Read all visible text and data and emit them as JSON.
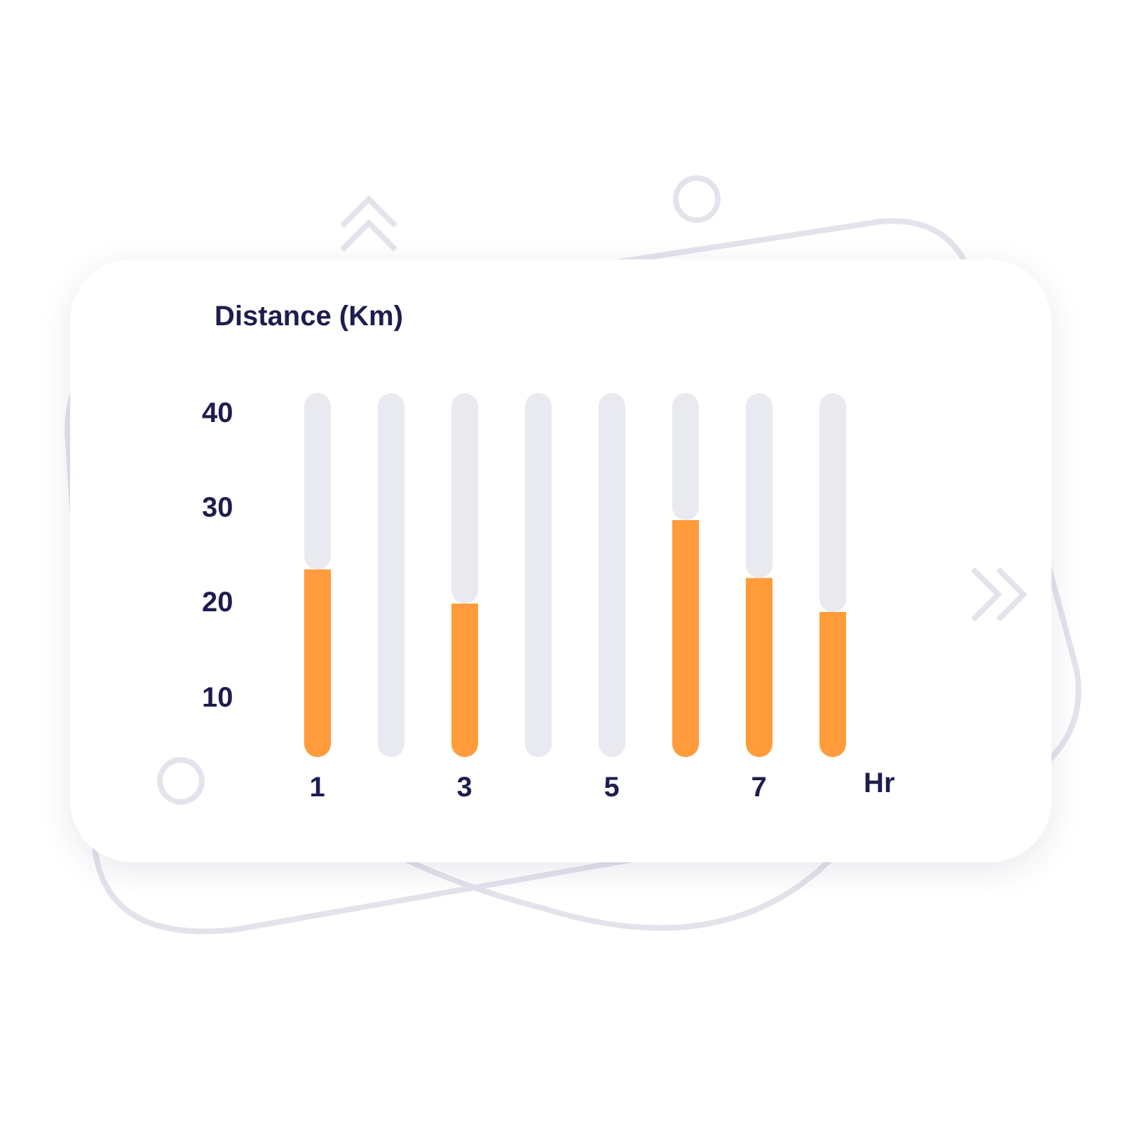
{
  "chart_data": {
    "type": "bar",
    "title": "Distance (Km)",
    "xlabel": "Hr",
    "categories": [
      "1",
      null,
      "3",
      null,
      "5",
      null,
      "7",
      null
    ],
    "stacked": true,
    "series": [
      {
        "color": "#ff9b3a",
        "values": [
          23.4,
          null,
          19.8,
          null,
          null,
          28.6,
          22.5,
          18.9
        ]
      },
      {
        "color": "#e9e9f0",
        "values": [
          18.6,
          42,
          22.2,
          42,
          42,
          13.4,
          19.5,
          23.1
        ]
      }
    ],
    "ylim": [
      3.6,
      42.5
    ],
    "yticks": [
      10,
      20,
      30,
      40
    ],
    "grid": false,
    "legend": false
  }
}
